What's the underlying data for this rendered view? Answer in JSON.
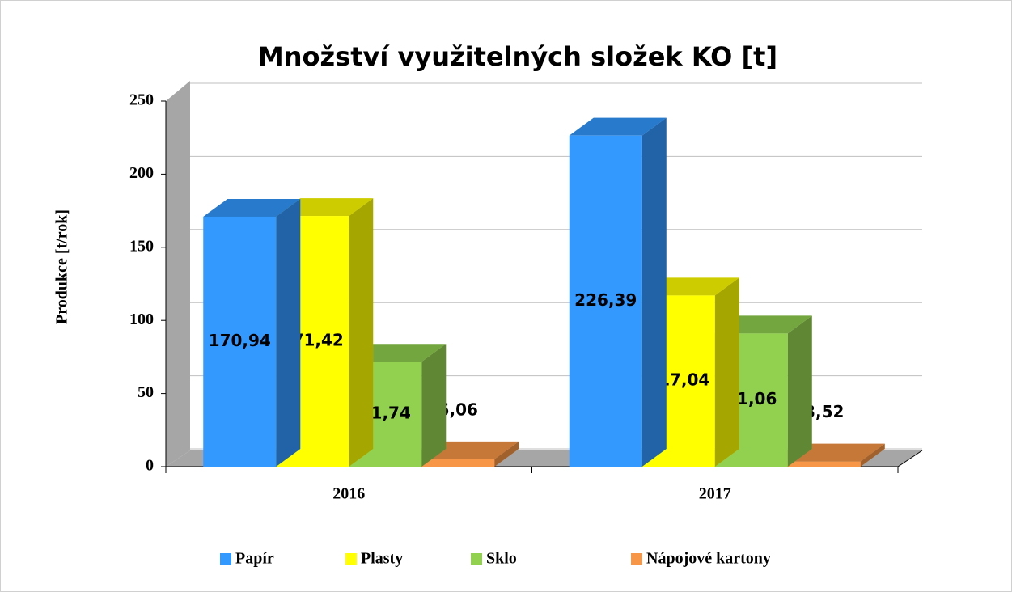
{
  "chart_data": {
    "type": "bar3d",
    "title": "Množství využitelných složek KO [t]",
    "ylabel": "Produkce [t/rok]",
    "categories": [
      "2016",
      "2017"
    ],
    "series": [
      {
        "name": "Papír",
        "color": "#3399ff",
        "values": [
          170.94,
          226.39
        ],
        "value_labels": [
          "170,94",
          "226,39"
        ]
      },
      {
        "name": "Plasty",
        "color": "#ffff00",
        "values": [
          171.42,
          117.04
        ],
        "value_labels": [
          "171,42",
          "117,04"
        ]
      },
      {
        "name": "Sklo",
        "color": "#92d050",
        "values": [
          71.74,
          91.06
        ],
        "value_labels": [
          "71,74",
          "91,06"
        ]
      },
      {
        "name": "Nápojové kartony",
        "color": "#f79646",
        "values": [
          5.06,
          3.52
        ],
        "value_labels": [
          "5,06",
          "3,52"
        ]
      }
    ],
    "ylim": [
      0,
      250
    ],
    "yticks": [
      0,
      50,
      100,
      150,
      200,
      250
    ],
    "grid": true,
    "legend": "bottom"
  }
}
